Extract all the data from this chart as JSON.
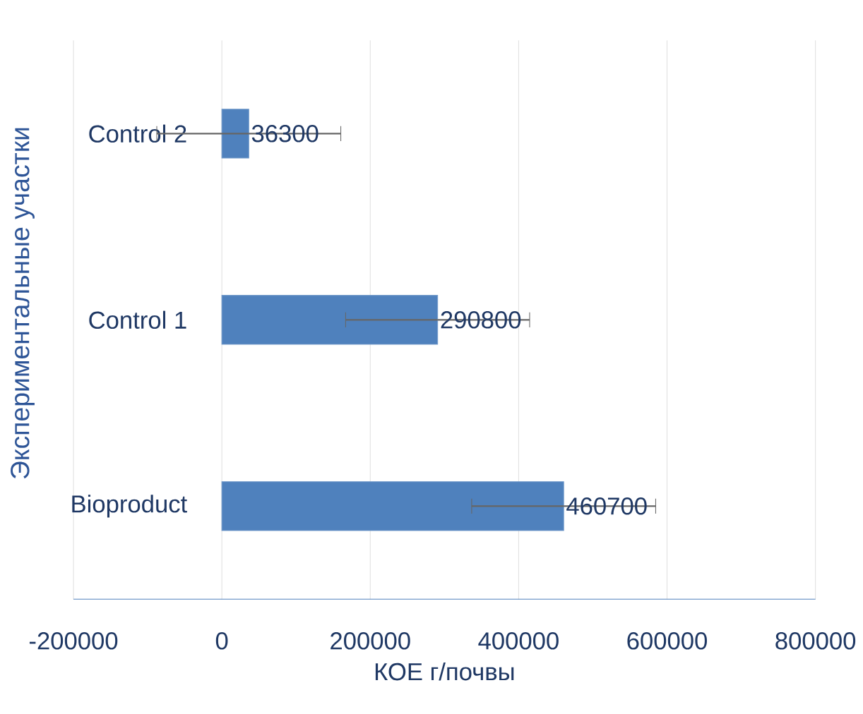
{
  "chart_data": {
    "type": "bar",
    "orientation": "horizontal",
    "xlabel": "КОЕ г/почвы",
    "ylabel": "Экспериментальные участки",
    "categories": [
      "Control 2",
      "Control 1",
      "Bioproduct"
    ],
    "values": [
      36300,
      290800,
      460700
    ],
    "errors": [
      124000,
      124000,
      124000
    ],
    "color": "#4f81bd",
    "data_labels": true,
    "grid": "x",
    "xlim": [
      -200000,
      800000
    ],
    "xticks": [
      -200000,
      0,
      200000,
      400000,
      600000,
      800000
    ]
  }
}
